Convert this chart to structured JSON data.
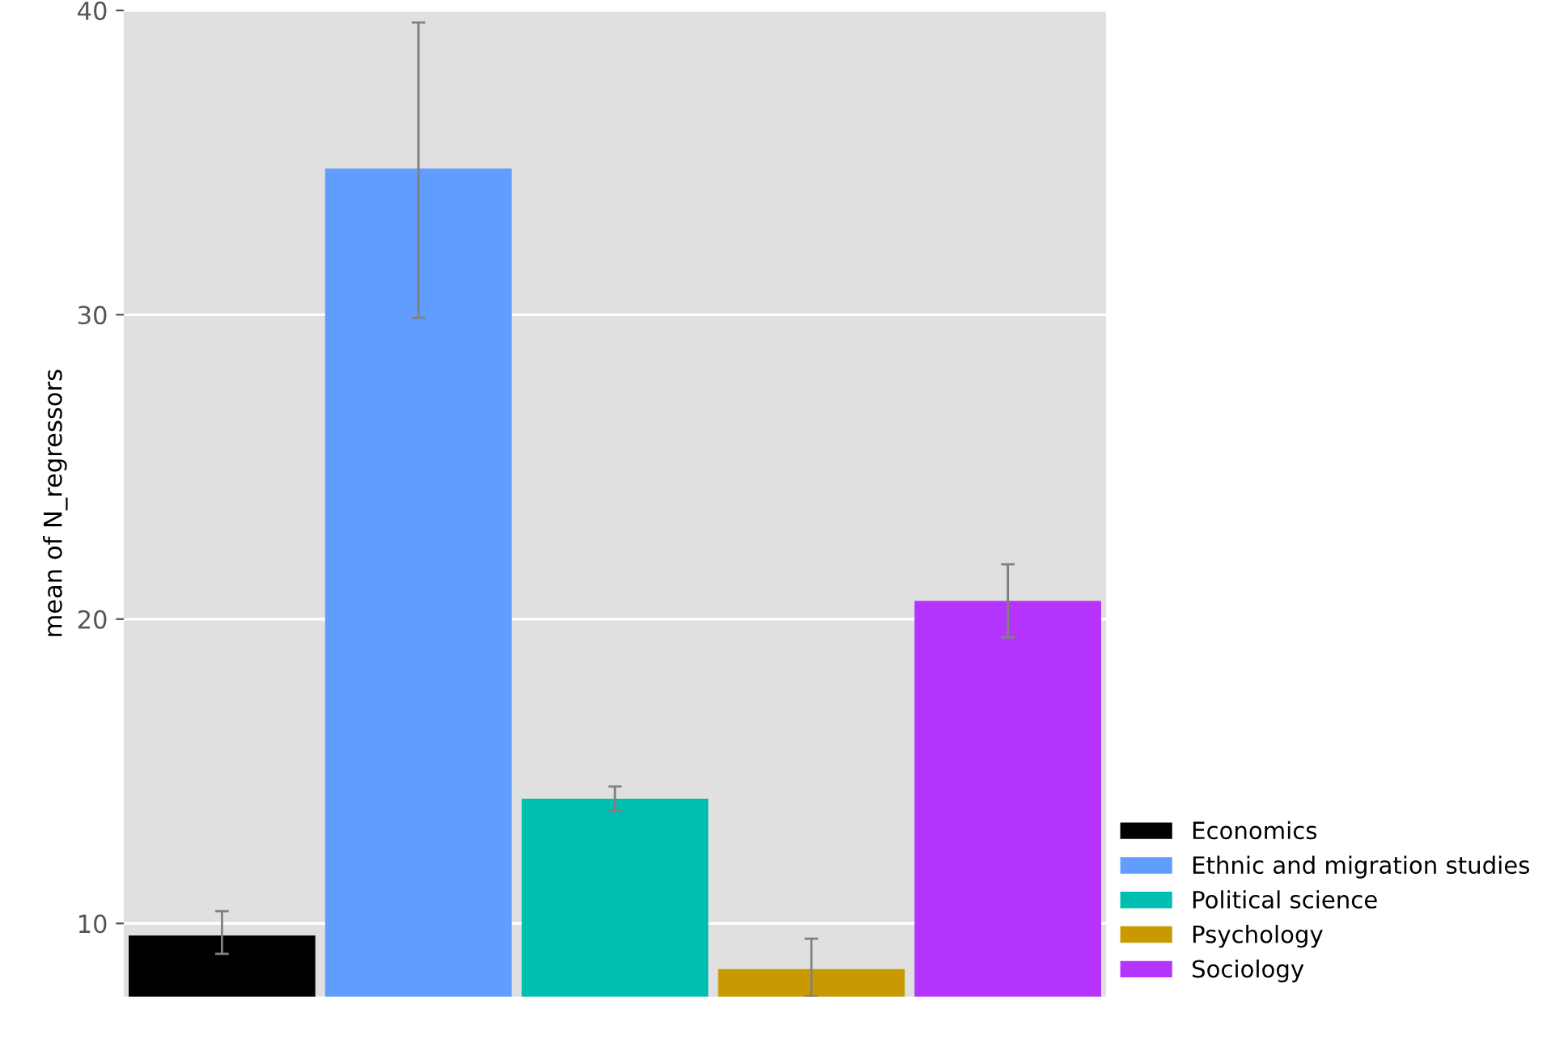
{
  "chart_data": {
    "type": "bar",
    "ylabel": "mean of N_regressors",
    "categories": [
      null,
      null,
      null,
      null,
      null
    ],
    "series": [
      {
        "name": "Economics",
        "color": "#000000",
        "values": [
          9.6,
          null,
          null,
          null,
          null
        ],
        "errors": [
          [
            9.0,
            10.4
          ],
          null,
          null,
          null,
          null
        ]
      },
      {
        "name": "Ethnic and migration studies",
        "color": "#619cff",
        "values": [
          null,
          34.8,
          null,
          null,
          null
        ],
        "errors": [
          null,
          [
            29.9,
            39.6
          ],
          null,
          null,
          null
        ]
      },
      {
        "name": "Political science",
        "color": "#00bfb0",
        "values": [
          null,
          null,
          14.1,
          null,
          null
        ],
        "errors": [
          null,
          null,
          [
            13.7,
            14.5
          ],
          null,
          null
        ]
      },
      {
        "name": "Psychology",
        "color": "#c89900",
        "values": [
          null,
          null,
          null,
          8.5,
          null
        ],
        "errors": [
          null,
          null,
          null,
          [
            7.6,
            9.5
          ],
          null
        ]
      },
      {
        "name": "Sociology",
        "color": "#b535ff",
        "values": [
          null,
          null,
          null,
          null,
          20.6
        ],
        "errors": [
          null,
          null,
          null,
          null,
          [
            19.4,
            21.8
          ]
        ]
      }
    ],
    "ylim": [
      7.6,
      40
    ],
    "yticks": [
      10,
      20,
      30,
      40
    ],
    "grid": "y",
    "legend": "bottom right",
    "tick_labels": "y"
  }
}
